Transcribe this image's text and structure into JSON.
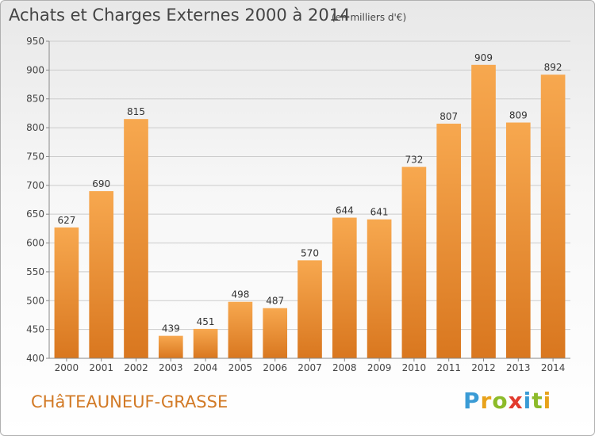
{
  "header": {
    "title": "Achats et Charges Externes 2000 à 2014",
    "unit": "(en milliers d'€)"
  },
  "footer": {
    "commune": "CHâTEAUNEUF-GRASSE",
    "logo": [
      "P",
      "r",
      "o",
      "x",
      "i",
      "t",
      "i"
    ]
  },
  "chart_data": {
    "type": "bar",
    "title": "Achats et Charges Externes 2000 à 2014",
    "subtitle": "(en milliers d'€)",
    "xlabel": "",
    "ylabel": "",
    "categories": [
      "2000",
      "2001",
      "2002",
      "2003",
      "2004",
      "2005",
      "2006",
      "2007",
      "2008",
      "2009",
      "2010",
      "2011",
      "2012",
      "2013",
      "2014"
    ],
    "values": [
      627,
      690,
      815,
      439,
      451,
      498,
      487,
      570,
      644,
      641,
      732,
      807,
      909,
      809,
      892
    ],
    "ylim": [
      400,
      950
    ],
    "yticks": [
      400,
      450,
      500,
      550,
      600,
      650,
      700,
      750,
      800,
      850,
      900,
      950
    ],
    "grid": true,
    "colors": {
      "bar_light": "#f7a84f",
      "bar_dark": "#d9771f",
      "grid": "#cccccc",
      "axis": "#888888"
    }
  }
}
